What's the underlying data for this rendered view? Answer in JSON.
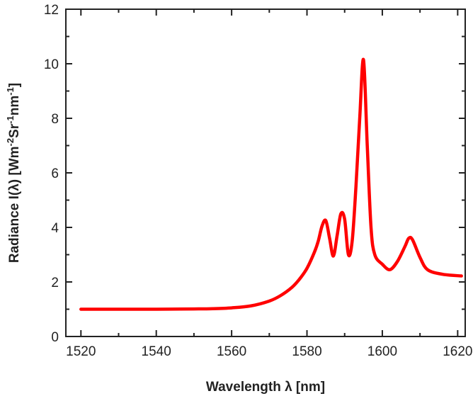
{
  "chart_data": {
    "type": "line",
    "title": "",
    "xlabel": "Wavelength λ [nm]",
    "ylabel_parts": [
      "Radiance I(λ) [Wm",
      "-2",
      "Sr",
      "-1",
      "nm",
      "-1",
      "]"
    ],
    "xlim": [
      1516,
      1622
    ],
    "ylim": [
      0,
      12
    ],
    "x_ticks": [
      1520,
      1540,
      1560,
      1580,
      1600,
      1620
    ],
    "y_ticks": [
      0,
      2,
      4,
      6,
      8,
      10,
      12
    ],
    "grid": false,
    "legend": "none",
    "series": [
      {
        "color": "#ff0000",
        "x": [
          1520,
          1530,
          1540,
          1550,
          1555,
          1560,
          1565,
          1570,
          1573,
          1576,
          1578,
          1580,
          1582,
          1583,
          1584,
          1585,
          1586,
          1587,
          1588,
          1589,
          1590,
          1591,
          1592,
          1593,
          1594,
          1595,
          1596,
          1597,
          1598,
          1600,
          1602,
          1604,
          1606,
          1607,
          1608,
          1610,
          1612,
          1616,
          1621
        ],
        "y": [
          1.0,
          1.0,
          1.0,
          1.01,
          1.02,
          1.05,
          1.12,
          1.3,
          1.5,
          1.8,
          2.1,
          2.5,
          3.1,
          3.5,
          4.05,
          4.25,
          3.6,
          2.95,
          3.7,
          4.5,
          4.3,
          3.0,
          3.5,
          5.5,
          8.0,
          10.15,
          7.0,
          4.0,
          3.0,
          2.65,
          2.45,
          2.75,
          3.3,
          3.6,
          3.55,
          2.9,
          2.45,
          2.28,
          2.22
        ]
      }
    ]
  }
}
